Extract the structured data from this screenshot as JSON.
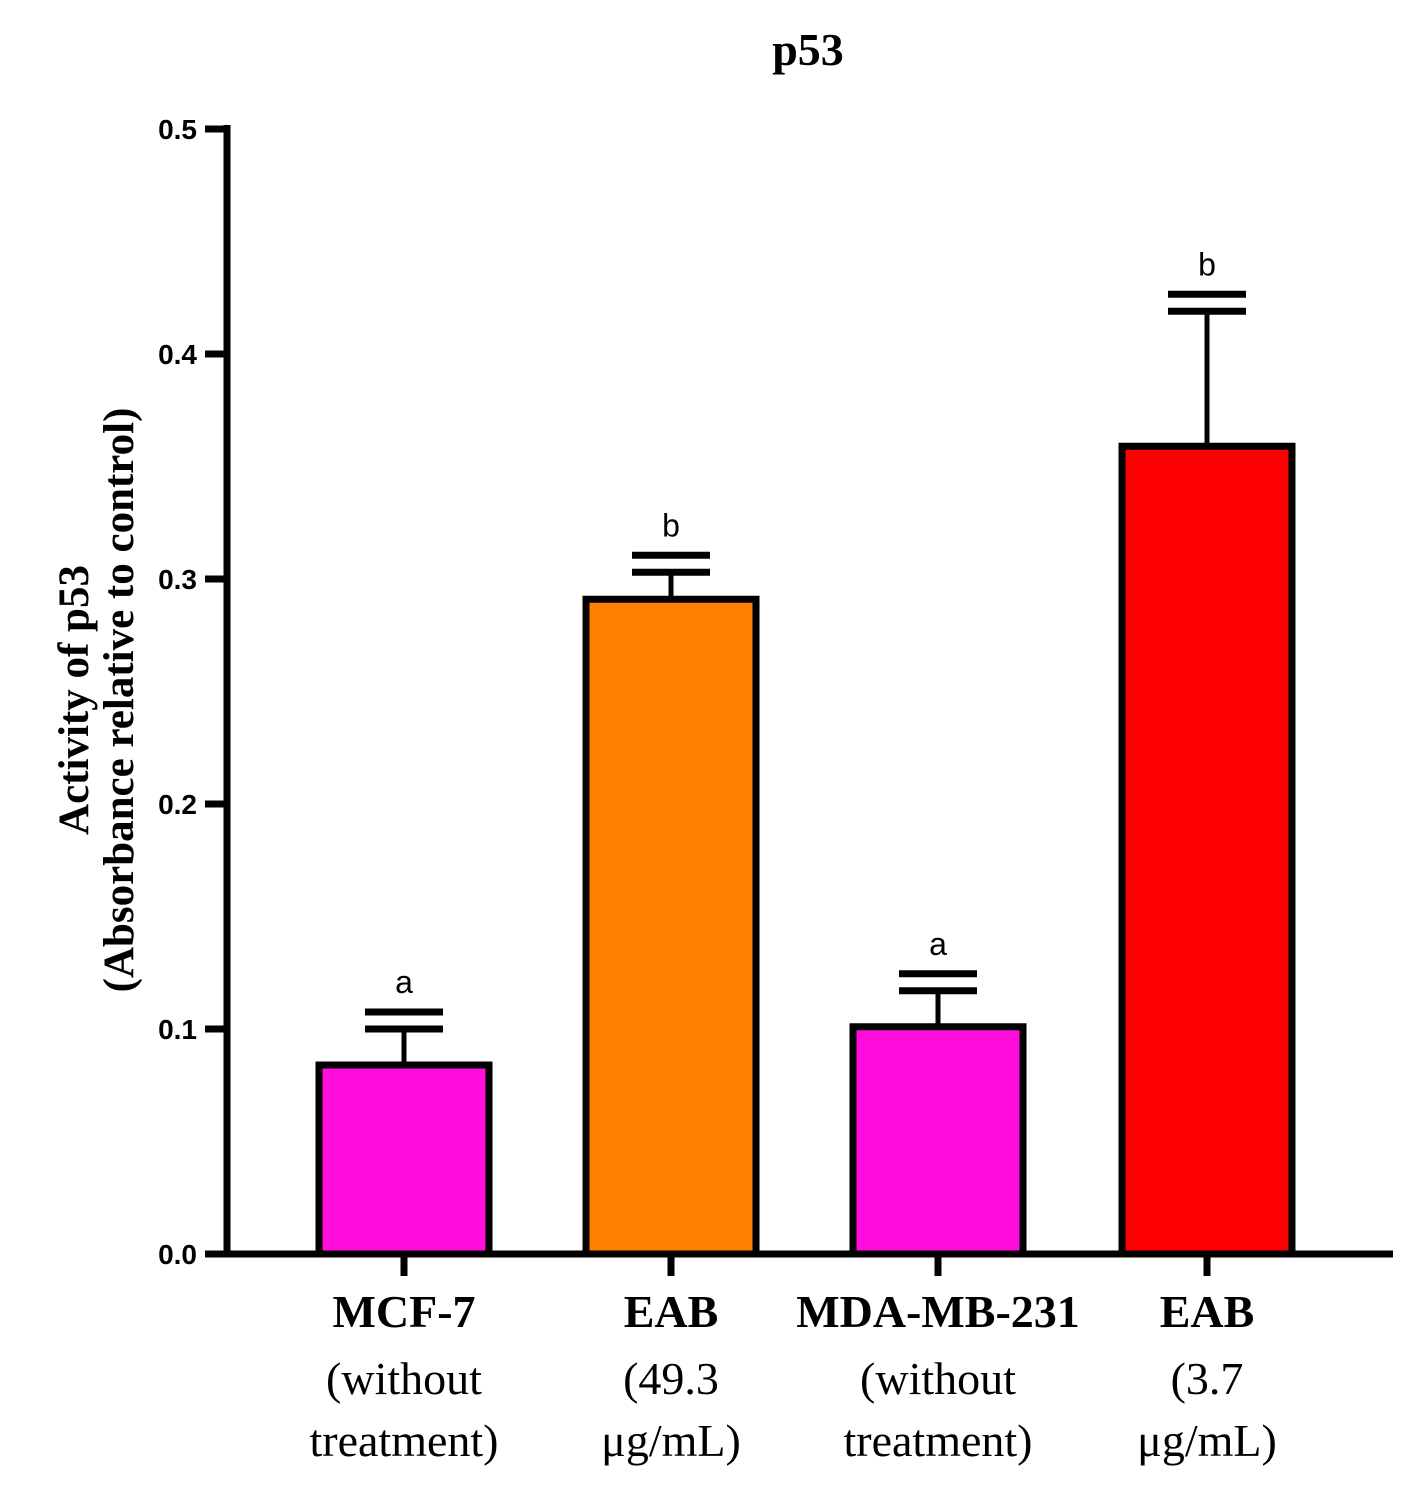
{
  "chart_data": {
    "type": "bar",
    "title": "p53",
    "ylabel_line1": "Activity of p53",
    "ylabel_line2": "(Absorbance relative to control)",
    "xlabel": "",
    "ylim": [
      0,
      0.5
    ],
    "yticks": [
      "0.0",
      "0.1",
      "0.2",
      "0.3",
      "0.4",
      "0.5"
    ],
    "bars": [
      {
        "name": "MCF-7",
        "sublabel_line1": "(without",
        "sublabel_line2": "treatment)",
        "value": 0.084,
        "error": 0.016,
        "significance": "a",
        "color": "#ff0ddc"
      },
      {
        "name": "EAB",
        "sublabel_line1": "(49.3",
        "sublabel_line2": "μg/mL)",
        "value": 0.291,
        "error": 0.012,
        "significance": "b",
        "color": "#ff8000"
      },
      {
        "name": "MDA-MB-231",
        "sublabel_line1": "(without",
        "sublabel_line2": "treatment)",
        "value": 0.101,
        "error": 0.016,
        "significance": "a",
        "color": "#ff0ddc"
      },
      {
        "name": "EAB",
        "sublabel_line1": "(3.7",
        "sublabel_line2": "μg/mL)",
        "value": 0.359,
        "error": 0.06,
        "significance": "b",
        "color": "#ff0000"
      }
    ]
  }
}
